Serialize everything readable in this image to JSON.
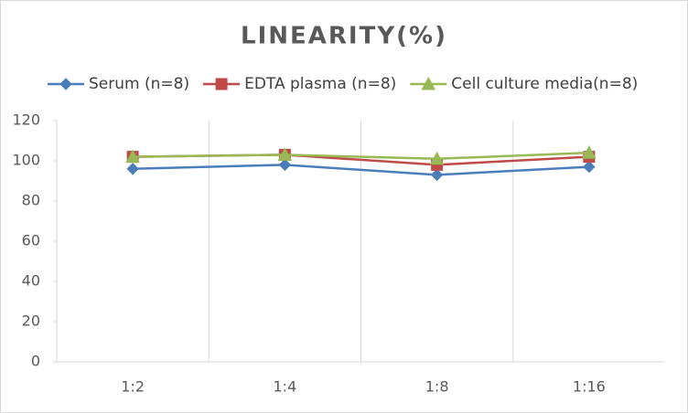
{
  "chart_data": {
    "type": "line",
    "title": "LINEARITY(%)",
    "categories": [
      "1:2",
      "1:4",
      "1:8",
      "1:16"
    ],
    "series": [
      {
        "name": "Serum (n=8)",
        "color": "#4a7ebb",
        "marker": "diamond",
        "values": [
          96,
          98,
          93,
          97
        ]
      },
      {
        "name": "EDTA plasma (n=8)",
        "color": "#be4b48",
        "marker": "square",
        "values": [
          102,
          103,
          98,
          102
        ]
      },
      {
        "name": "Cell culture media(n=8)",
        "color": "#98b954",
        "marker": "triangle",
        "values": [
          102,
          103,
          101,
          104
        ]
      }
    ],
    "ylim": [
      0,
      120
    ],
    "yticks": [
      0,
      20,
      40,
      60,
      80,
      100,
      120
    ],
    "legend": "top"
  }
}
